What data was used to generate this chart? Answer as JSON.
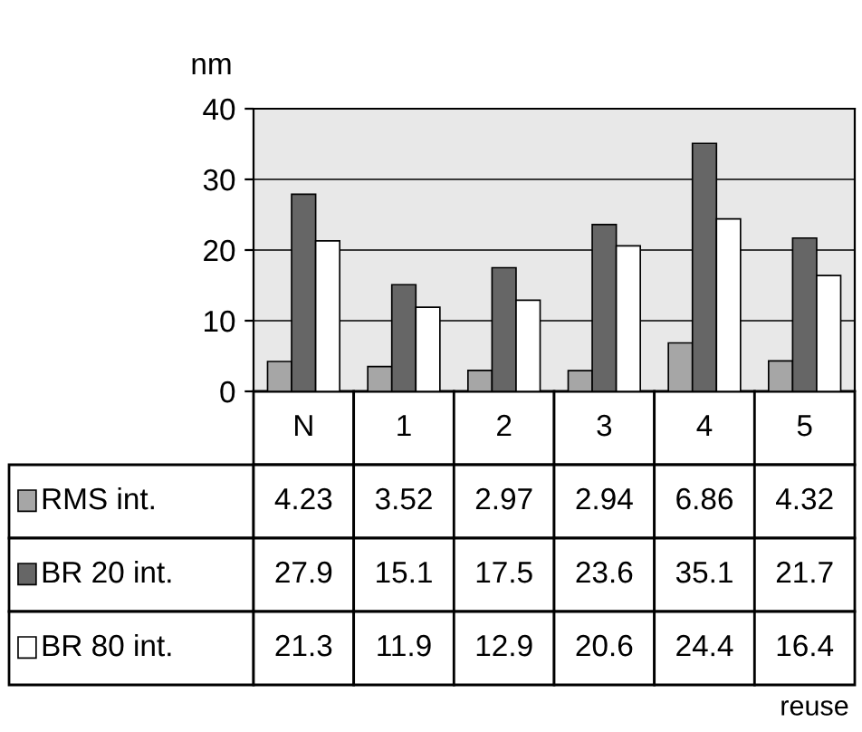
{
  "chart_data": {
    "type": "bar",
    "ylabel": "nm",
    "categories": [
      "N",
      "1",
      "2",
      "3",
      "4",
      "5"
    ],
    "series": [
      {
        "name": "RMS int.",
        "color": "#a6a6a6",
        "values": [
          4.23,
          3.52,
          2.97,
          2.94,
          6.86,
          4.32
        ]
      },
      {
        "name": "BR 20 int.",
        "color": "#666666",
        "values": [
          27.9,
          15.1,
          17.5,
          23.6,
          35.1,
          21.7
        ]
      },
      {
        "name": "BR 80 int.",
        "color": "#ffffff",
        "values": [
          21.3,
          11.9,
          12.9,
          20.6,
          24.4,
          16.4
        ]
      }
    ],
    "ylim": [
      0,
      40
    ],
    "yticks": [
      0,
      10,
      20,
      30,
      40
    ],
    "grid": "y",
    "tick_labels": "y",
    "data_labels": true,
    "legend": "bottom left",
    "annotations": [
      "reuse"
    ]
  }
}
